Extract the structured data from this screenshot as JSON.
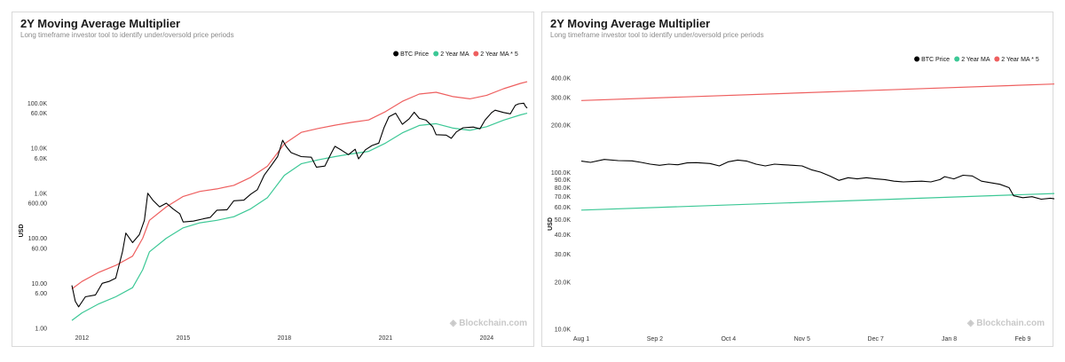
{
  "colors": {
    "btc": "#000000",
    "ma": "#3cc896",
    "ma5": "#ee5f5f",
    "watermark": "#c8c8c8"
  },
  "watermark": "Blockchain.com",
  "chart_data": [
    {
      "type": "line",
      "title": "2Y Moving Average Multiplier",
      "subtitle": "Long timeframe investor tool to identify under/oversold price periods",
      "ylabel": "USD",
      "yscale": "log",
      "ylim": [
        1,
        330000
      ],
      "xlim": [
        2011.2,
        2025.2
      ],
      "yticks": [
        {
          "v": 1,
          "label": "1.00"
        },
        {
          "v": 6,
          "label": "6.00"
        },
        {
          "v": 10,
          "label": "10.00"
        },
        {
          "v": 60,
          "label": "60.00"
        },
        {
          "v": 100,
          "label": "100.00"
        },
        {
          "v": 600,
          "label": "600.00"
        },
        {
          "v": 1000,
          "label": "1.0K"
        },
        {
          "v": 6000,
          "label": "6.0K"
        },
        {
          "v": 10000,
          "label": "10.0K"
        },
        {
          "v": 60000,
          "label": "60.0K"
        },
        {
          "v": 100000,
          "label": "100.0K"
        }
      ],
      "xticks": [
        {
          "v": 2012,
          "label": "2012"
        },
        {
          "v": 2015,
          "label": "2015"
        },
        {
          "v": 2018,
          "label": "2018"
        },
        {
          "v": 2021,
          "label": "2021"
        },
        {
          "v": 2024,
          "label": "2024"
        }
      ],
      "legend": [
        "BTC Price",
        "2 Year MA",
        "2 Year MA * 5"
      ],
      "legend_position": "top-right",
      "series": [
        {
          "name": "BTC Price",
          "color": "#000000",
          "points": [
            [
              2011.7,
              9
            ],
            [
              2011.8,
              4
            ],
            [
              2011.9,
              3
            ],
            [
              2012.1,
              5
            ],
            [
              2012.4,
              5.5
            ],
            [
              2012.6,
              10
            ],
            [
              2012.8,
              11
            ],
            [
              2013.0,
              13
            ],
            [
              2013.2,
              50
            ],
            [
              2013.3,
              130
            ],
            [
              2013.5,
              80
            ],
            [
              2013.7,
              120
            ],
            [
              2013.85,
              250
            ],
            [
              2013.95,
              1000
            ],
            [
              2014.1,
              700
            ],
            [
              2014.3,
              500
            ],
            [
              2014.5,
              600
            ],
            [
              2014.7,
              450
            ],
            [
              2014.9,
              350
            ],
            [
              2015.0,
              230
            ],
            [
              2015.3,
              240
            ],
            [
              2015.6,
              270
            ],
            [
              2015.8,
              290
            ],
            [
              2016.0,
              420
            ],
            [
              2016.3,
              430
            ],
            [
              2016.5,
              680
            ],
            [
              2016.8,
              700
            ],
            [
              2017.0,
              950
            ],
            [
              2017.2,
              1200
            ],
            [
              2017.4,
              2500
            ],
            [
              2017.6,
              4000
            ],
            [
              2017.8,
              6500
            ],
            [
              2017.95,
              15000
            ],
            [
              2018.05,
              11000
            ],
            [
              2018.2,
              8000
            ],
            [
              2018.5,
              6500
            ],
            [
              2018.8,
              6300
            ],
            [
              2018.95,
              3800
            ],
            [
              2019.2,
              4000
            ],
            [
              2019.4,
              8000
            ],
            [
              2019.5,
              11000
            ],
            [
              2019.7,
              9000
            ],
            [
              2019.9,
              7200
            ],
            [
              2020.1,
              9500
            ],
            [
              2020.2,
              5800
            ],
            [
              2020.4,
              9200
            ],
            [
              2020.6,
              11500
            ],
            [
              2020.8,
              13000
            ],
            [
              2020.95,
              28000
            ],
            [
              2021.1,
              50000
            ],
            [
              2021.3,
              60000
            ],
            [
              2021.5,
              34000
            ],
            [
              2021.7,
              45000
            ],
            [
              2021.85,
              63000
            ],
            [
              2022.0,
              46000
            ],
            [
              2022.2,
              42000
            ],
            [
              2022.4,
              30000
            ],
            [
              2022.5,
              20000
            ],
            [
              2022.8,
              19500
            ],
            [
              2022.95,
              16600
            ],
            [
              2023.1,
              23000
            ],
            [
              2023.3,
              28500
            ],
            [
              2023.6,
              29500
            ],
            [
              2023.8,
              27000
            ],
            [
              2023.95,
              42000
            ],
            [
              2024.15,
              62000
            ],
            [
              2024.25,
              70000
            ],
            [
              2024.5,
              62000
            ],
            [
              2024.7,
              58000
            ],
            [
              2024.85,
              90000
            ],
            [
              2024.95,
              97000
            ],
            [
              2025.1,
              100000
            ],
            [
              2025.15,
              85000
            ],
            [
              2025.2,
              78000
            ]
          ]
        },
        {
          "name": "2 Year MA",
          "color": "#3cc896",
          "points": [
            [
              2011.7,
              1.5
            ],
            [
              2012.0,
              2.2
            ],
            [
              2012.5,
              3.5
            ],
            [
              2013.0,
              5
            ],
            [
              2013.5,
              8
            ],
            [
              2013.8,
              20
            ],
            [
              2014.0,
              50
            ],
            [
              2014.5,
              100
            ],
            [
              2015.0,
              170
            ],
            [
              2015.5,
              220
            ],
            [
              2016.0,
              250
            ],
            [
              2016.5,
              300
            ],
            [
              2017.0,
              450
            ],
            [
              2017.5,
              800
            ],
            [
              2018.0,
              2500
            ],
            [
              2018.5,
              4500
            ],
            [
              2019.0,
              5500
            ],
            [
              2019.5,
              6500
            ],
            [
              2020.0,
              7500
            ],
            [
              2020.5,
              8500
            ],
            [
              2021.0,
              13000
            ],
            [
              2021.5,
              22000
            ],
            [
              2022.0,
              32000
            ],
            [
              2022.5,
              35000
            ],
            [
              2023.0,
              28000
            ],
            [
              2023.5,
              25000
            ],
            [
              2024.0,
              30000
            ],
            [
              2024.5,
              42000
            ],
            [
              2025.0,
              55000
            ],
            [
              2025.2,
              60000
            ]
          ]
        },
        {
          "name": "2 Year MA * 5",
          "color": "#ee5f5f",
          "points": [
            [
              2011.7,
              7.5
            ],
            [
              2012.0,
              11
            ],
            [
              2012.5,
              17.5
            ],
            [
              2013.0,
              25
            ],
            [
              2013.5,
              40
            ],
            [
              2013.8,
              100
            ],
            [
              2014.0,
              250
            ],
            [
              2014.5,
              500
            ],
            [
              2015.0,
              850
            ],
            [
              2015.5,
              1100
            ],
            [
              2016.0,
              1250
            ],
            [
              2016.5,
              1500
            ],
            [
              2017.0,
              2250
            ],
            [
              2017.5,
              4000
            ],
            [
              2018.0,
              12500
            ],
            [
              2018.5,
              22500
            ],
            [
              2019.0,
              27500
            ],
            [
              2019.5,
              32500
            ],
            [
              2020.0,
              37500
            ],
            [
              2020.5,
              42500
            ],
            [
              2021.0,
              65000
            ],
            [
              2021.5,
              110000
            ],
            [
              2022.0,
              160000
            ],
            [
              2022.5,
              175000
            ],
            [
              2023.0,
              140000
            ],
            [
              2023.5,
              125000
            ],
            [
              2024.0,
              150000
            ],
            [
              2024.5,
              210000
            ],
            [
              2025.0,
              275000
            ],
            [
              2025.2,
              300000
            ]
          ]
        }
      ]
    },
    {
      "type": "line",
      "title": "2Y Moving Average Multiplier",
      "subtitle": "Long timeframe investor tool to identify under/oversold price periods",
      "ylabel": "USD",
      "yscale": "log",
      "ylim": [
        10000,
        480000
      ],
      "xlim": [
        0,
        203
      ],
      "yticks": [
        {
          "v": 10000,
          "label": "10.0K"
        },
        {
          "v": 20000,
          "label": "20.0K"
        },
        {
          "v": 30000,
          "label": "30.0K"
        },
        {
          "v": 40000,
          "label": "40.0K"
        },
        {
          "v": 50000,
          "label": "50.0K"
        },
        {
          "v": 60000,
          "label": "60.0K"
        },
        {
          "v": 70000,
          "label": "70.0K"
        },
        {
          "v": 80000,
          "label": "80.0K"
        },
        {
          "v": 90000,
          "label": "90.0K"
        },
        {
          "v": 100000,
          "label": "100.0K"
        },
        {
          "v": 200000,
          "label": "200.0K"
        },
        {
          "v": 300000,
          "label": "300.0K"
        },
        {
          "v": 400000,
          "label": "400.0K"
        }
      ],
      "xticks": [
        {
          "v": 0,
          "label": "Aug 1"
        },
        {
          "v": 32,
          "label": "Sep 2"
        },
        {
          "v": 64,
          "label": "Oct 4"
        },
        {
          "v": 96,
          "label": "Nov 5"
        },
        {
          "v": 128,
          "label": "Dec 7"
        },
        {
          "v": 160,
          "label": "Jan 8"
        },
        {
          "v": 192,
          "label": "Feb 9"
        }
      ],
      "legend": [
        "BTC Price",
        "2 Year MA",
        "2 Year MA * 5"
      ],
      "legend_position": "top-right",
      "series": [
        {
          "name": "BTC Price",
          "color": "#000000",
          "points": [
            [
              0,
              118000
            ],
            [
              4,
              116000
            ],
            [
              10,
              121000
            ],
            [
              16,
              119000
            ],
            [
              22,
              118500
            ],
            [
              26,
              116000
            ],
            [
              30,
              113000
            ],
            [
              34,
              111000
            ],
            [
              38,
              113000
            ],
            [
              42,
              112000
            ],
            [
              46,
              115000
            ],
            [
              50,
              115500
            ],
            [
              56,
              114000
            ],
            [
              60,
              110000
            ],
            [
              64,
              117000
            ],
            [
              68,
              120000
            ],
            [
              72,
              118000
            ],
            [
              76,
              113000
            ],
            [
              80,
              110000
            ],
            [
              84,
              113000
            ],
            [
              88,
              112000
            ],
            [
              92,
              111000
            ],
            [
              96,
              110000
            ],
            [
              100,
              104000
            ],
            [
              104,
              100500
            ],
            [
              108,
              95000
            ],
            [
              112,
              89000
            ],
            [
              116,
              92500
            ],
            [
              120,
              91000
            ],
            [
              124,
              92500
            ],
            [
              128,
              91000
            ],
            [
              132,
              90000
            ],
            [
              136,
              88000
            ],
            [
              140,
              87000
            ],
            [
              144,
              87500
            ],
            [
              148,
              88000
            ],
            [
              152,
              87000
            ],
            [
              156,
              90000
            ],
            [
              158,
              94000
            ],
            [
              162,
              91000
            ],
            [
              166,
              96000
            ],
            [
              170,
              95000
            ],
            [
              174,
              88000
            ],
            [
              178,
              86000
            ],
            [
              182,
              84000
            ],
            [
              186,
              80000
            ],
            [
              188,
              71000
            ],
            [
              192,
              69000
            ],
            [
              196,
              70000
            ],
            [
              200,
              67500
            ],
            [
              204,
              68500
            ],
            [
              208,
              67000
            ],
            [
              212,
              68000
            ],
            [
              216,
              68000
            ],
            [
              219,
              67500
            ]
          ]
        },
        {
          "name": "2 Year MA",
          "color": "#3cc896",
          "points": [
            [
              0,
              57500
            ],
            [
              219,
              74500
            ]
          ]
        },
        {
          "name": "2 Year MA * 5",
          "color": "#ee5f5f",
          "points": [
            [
              0,
              287500
            ],
            [
              219,
              372500
            ]
          ]
        }
      ]
    }
  ]
}
